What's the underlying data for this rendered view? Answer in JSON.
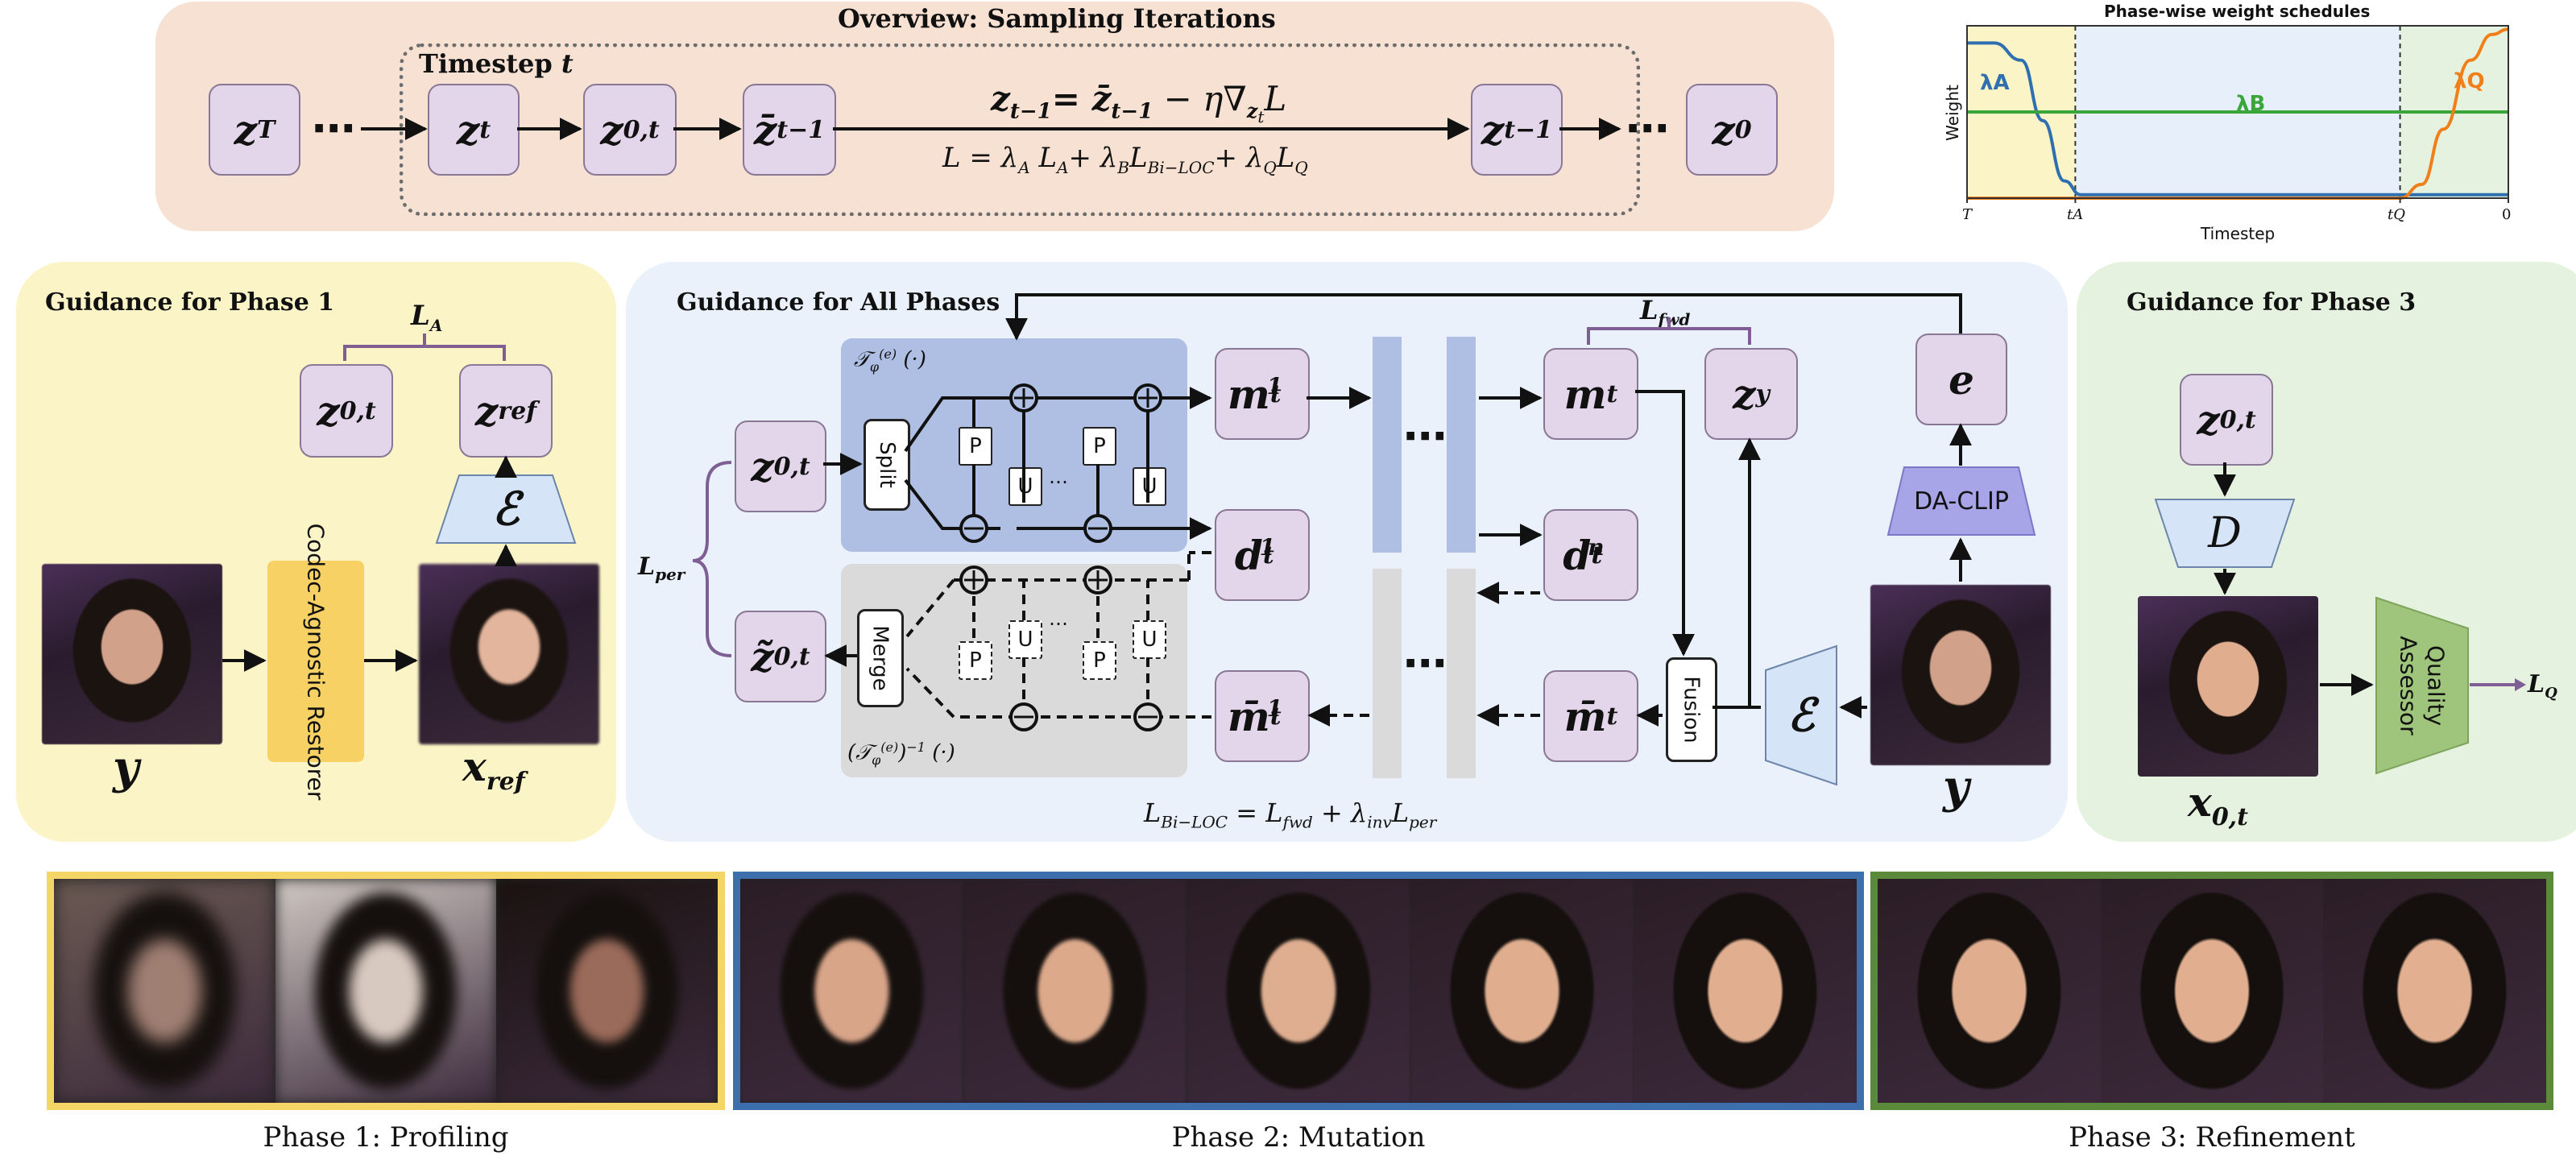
{
  "overview": {
    "title": "Overview: Sampling Iterations",
    "timestep_label": "Timestep",
    "timestep_symbol": "t",
    "update_eq": "z_{t−1} = z̄_{t−1} − η∇_{z_t} L",
    "loss_eq": "L = λ_A L_A + λ_B L_{Bi−LOC} + λ_Q L_Q",
    "nodes": [
      "z_T",
      "z_t",
      "z_{0,t}",
      "z̄_{t−1}",
      "z_{t−1}",
      "z_0"
    ]
  },
  "weight_chart": {
    "title": "Phase-wise weight schedules",
    "ylabel": "Weight",
    "xlabel": "Timestep",
    "x_ticks": [
      "T",
      "tA",
      "tQ",
      "0"
    ],
    "series": [
      {
        "name": "λA",
        "color": "#2f6fb0"
      },
      {
        "name": "λB",
        "color": "#3aa63a"
      },
      {
        "name": "λQ",
        "color": "#f07f1a"
      }
    ],
    "phase_colors": [
      "#fbf4c6",
      "#e6effa",
      "#e6f2e0"
    ]
  },
  "chart_data": {
    "type": "line",
    "title": "Phase-wise weight schedules",
    "xlabel": "Timestep",
    "ylabel": "Weight",
    "x_ticks": [
      "T",
      "tA",
      "tQ",
      "0"
    ],
    "series": [
      {
        "name": "λA",
        "points": [
          [
            0,
            0.9
          ],
          [
            0.05,
            0.9
          ],
          [
            0.1,
            0.8
          ],
          [
            0.14,
            0.45
          ],
          [
            0.18,
            0.1
          ],
          [
            0.21,
            0.02
          ],
          [
            1,
            0.02
          ]
        ]
      },
      {
        "name": "λB",
        "points": [
          [
            0,
            0.5
          ],
          [
            1,
            0.5
          ]
        ]
      },
      {
        "name": "λQ",
        "points": [
          [
            0,
            0.0
          ],
          [
            0.8,
            0.0
          ],
          [
            0.84,
            0.08
          ],
          [
            0.88,
            0.4
          ],
          [
            0.93,
            0.8
          ],
          [
            0.97,
            0.95
          ],
          [
            1,
            0.98
          ]
        ]
      }
    ],
    "phase_boundaries": [
      0.2,
      0.8
    ],
    "grid": false
  },
  "phase1": {
    "title": "Guidance for Phase 1",
    "loss": "L_A",
    "restorer_label": "Codec-Agnostic Restorer",
    "input_label": "y",
    "ref_label": "x_ref",
    "encoder_symbol": "ℰ"
  },
  "all_phases": {
    "title": "Guidance for All Phases",
    "fwd_loss": "L_fwd",
    "per_loss": "L_per",
    "bi_loc_eq": "L_{Bi−LOC} = L_fwd + λ_inv L_per",
    "forward_op": "𝒯φ(e) (·)",
    "inverse_op": "(𝒯φ(e))−1 (·)",
    "split_label": "Split",
    "merge_label": "Merge",
    "fusion_label": "Fusion",
    "daclip_label": "DA-CLIP",
    "p_label": "P",
    "u_label": "U",
    "e_label": "e",
    "input_label": "y",
    "encoder_symbol": "ℰ"
  },
  "phase3": {
    "title": "Guidance for Phase 3",
    "decoder_symbol": "D",
    "assessor_label": "Quality Assessor",
    "loss": "L_Q",
    "output_label": "x_{0,t}"
  },
  "strips": [
    {
      "caption": "Phase 1:  Profiling",
      "border": "#f5d566"
    },
    {
      "caption": "Phase 2:  Mutation",
      "border": "#3d6fae"
    },
    {
      "caption": "Phase 3:  Refinement",
      "border": "#5a8a3a"
    }
  ]
}
